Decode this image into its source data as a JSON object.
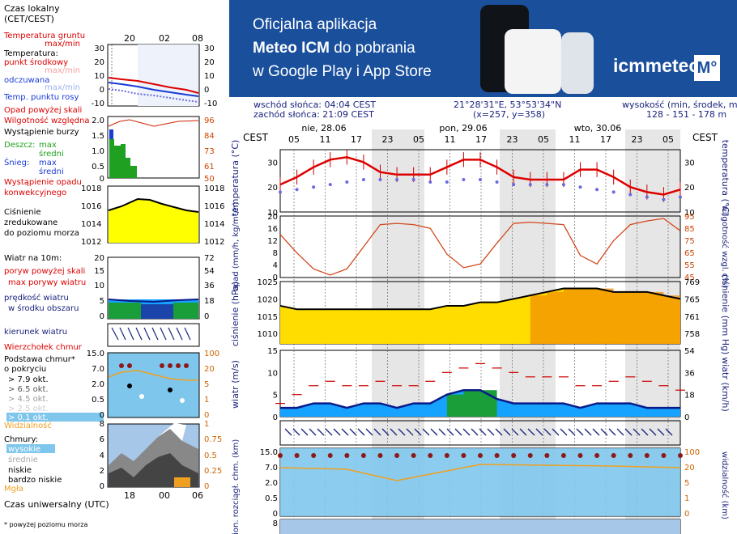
{
  "banner": {
    "line1": "Oficjalna aplikacja",
    "line2_bold": "Meteo ICM",
    "line2_rest": " do pobrania",
    "line3": "w Google Play i App Store",
    "logo": "icmmeteo",
    "logo_mark": "M°",
    "colors": {
      "background": "#1a4f9c",
      "text": "#ffffff"
    }
  },
  "info": {
    "sunrise": "wschód słońca: 04:04 CEST",
    "sunset": "zachód słońca: 21:09 CEST",
    "coords": "21°28'31\"E, 53°53'34\"N",
    "grid": "(x=257,  y=358)",
    "height_label": "wysokość (min, środek, max)",
    "height_values": "128 - 151 - 178 m"
  },
  "timeline": {
    "tz": "CEST",
    "days": [
      "nie, 28.06",
      "pon, 29.06",
      "wto, 30.06"
    ],
    "hours": [
      "05",
      "11",
      "17",
      "23",
      "05",
      "11",
      "17",
      "23",
      "05",
      "11",
      "17",
      "23",
      "05"
    ],
    "utc_label": "Czas uniwersalny (UTC)",
    "legend_top_hours": [
      "20",
      "02",
      "08"
    ],
    "legend_bottom_hours": [
      "18",
      "00",
      "06"
    ]
  },
  "legend": {
    "local_time": [
      "Czas lokalny",
      "(CET/CEST)"
    ],
    "temperature": {
      "ground": "Temperatura gruntu",
      "maxmin": "max/min",
      "title": "Temperatura:",
      "mid": "punkt środkowy",
      "maxmin2": "max/min",
      "feels": "odczuwana",
      "maxmin3": "max/min",
      "dew": "Temp. punktu rosy",
      "left_ticks": [
        "30",
        "20",
        "10",
        "0",
        "-10"
      ],
      "right_ticks": [
        "30",
        "20",
        "10",
        "0",
        "-10"
      ]
    },
    "precip": {
      "over_scale": "Opad powyżej skali",
      "humidity": "Wilgotność względna",
      "storm": "Wystąpienie burzy",
      "rain": "Deszcz:",
      "rain_max": "max",
      "rain_avg": "średni",
      "snow": "Śnieg:",
      "snow_max": "max",
      "snow_avg": "średni",
      "occurrence": [
        "Wystąpienie opadu",
        "konwekcyjnego"
      ],
      "left_ticks": [
        "2.0",
        "1.5",
        "1.0",
        "0.5",
        "0"
      ],
      "right_ticks": [
        "96",
        "84",
        "73",
        "61",
        "50"
      ]
    },
    "pressure": {
      "label": [
        "Ciśnienie",
        "zredukowane",
        "do poziomu morza"
      ],
      "ticks": [
        "1018",
        "1016",
        "1014",
        "1012"
      ]
    },
    "wind": {
      "title": "Wiatr na 10m:",
      "gust_over": "poryw powyżej skali",
      "gust_max": "max porywy wiatru",
      "speed": [
        "prędkość wiatru",
        "w środku obszaru"
      ],
      "left_ticks": [
        "20",
        "15",
        "10",
        "5",
        "0"
      ],
      "right_ticks": [
        "72",
        "54",
        "36",
        "18",
        "0"
      ]
    },
    "wind_dir": "kierunek wiatru",
    "cloud_base": {
      "top": "Wierzchołek chmur",
      "title": [
        "Podstawa chmur*",
        "o pokryciu"
      ],
      "okt": [
        "> 7.9 okt.",
        "> 6.5 okt.",
        "> 4.5 okt.",
        "> 2.5 okt.",
        "> 0.1 okt."
      ],
      "visibility": "Widzialność",
      "left_ticks": [
        "15.0",
        "7.0",
        "2.0",
        "0.5",
        "0"
      ],
      "right_ticks": [
        "100",
        "20",
        "5",
        "1",
        "0"
      ]
    },
    "clouds": {
      "title": "Chmury:",
      "high": "wysokie",
      "mid": "średnie",
      "low": "niskie",
      "very_low": "bardzo niskie",
      "fog": "Mgła",
      "left_ticks": [
        "8",
        "6",
        "4",
        "2",
        "0"
      ],
      "right_ticks": [
        "1",
        "0.75",
        "0.5",
        "0.25",
        "0"
      ]
    },
    "footnote": "* powyżej poziomu morza"
  },
  "axes": {
    "temperature": {
      "left": "temperatura (°C)",
      "right": "temperatura (°C)",
      "ticks": [
        "30",
        "20",
        "10"
      ]
    },
    "precip": {
      "left": "opad (mm/h, kg/m²/h)",
      "right": "wilgotność wzgl. (%)",
      "left_ticks": [
        "20",
        "16",
        "12",
        "8",
        "4",
        "0"
      ],
      "right_ticks": [
        "95",
        "85",
        "75",
        "65",
        "55",
        "45"
      ]
    },
    "pressure": {
      "left": "ciśnienie (hPa)",
      "right": "ciśnienie (mm Hg)",
      "left_ticks": [
        "1025",
        "1020",
        "1015",
        "1010"
      ],
      "right_ticks": [
        "769",
        "765",
        "761",
        "758"
      ]
    },
    "wind": {
      "left": "wiatr (m/s)",
      "right": "wiatr (km/h)",
      "left_ticks": [
        "15",
        "10",
        "5",
        "0"
      ],
      "right_ticks": [
        "54",
        "36",
        "18",
        "0"
      ]
    },
    "cloud": {
      "left": "pion. rozciągł. chm. (km)",
      "right": "widzialność (km)",
      "left_ticks": [
        "15.0",
        "7.0",
        "2.0",
        "0.5",
        "0"
      ],
      "right_ticks": [
        "100",
        "20",
        "5",
        "1",
        "0"
      ]
    },
    "clouds_bottom": {
      "left_ticks": [
        "8"
      ]
    }
  },
  "chart_data": {
    "type": "line",
    "x_label": "hour index (3h steps from 05 CEST, 28.06)",
    "series": [
      {
        "name": "temperatura",
        "unit": "°C",
        "values": [
          21,
          24,
          28,
          31,
          32,
          30,
          26,
          25,
          25,
          25,
          28,
          31,
          31,
          28,
          24,
          23,
          23,
          23,
          27,
          27,
          24,
          20,
          18,
          17,
          19
        ]
      },
      {
        "name": "temperatura punktu rosy",
        "unit": "°C",
        "values": [
          18,
          19,
          20,
          21,
          22,
          23,
          23,
          23,
          23,
          22,
          22,
          23,
          23,
          22,
          21,
          21,
          21,
          21,
          20,
          19,
          18,
          17,
          16,
          15,
          16
        ]
      },
      {
        "name": "opad",
        "unit": "mm/h",
        "values": [
          0,
          0,
          0,
          0,
          0,
          0,
          0,
          0,
          0,
          0,
          0,
          0,
          0,
          0,
          0,
          0,
          0,
          0,
          0,
          0,
          0,
          0,
          0,
          0,
          0
        ]
      },
      {
        "name": "wilgotność",
        "unit": "%",
        "values": [
          80,
          65,
          52,
          47,
          52,
          70,
          88,
          89,
          88,
          85,
          64,
          53,
          56,
          73,
          89,
          90,
          89,
          88,
          63,
          56,
          75,
          88,
          91,
          93,
          83
        ]
      },
      {
        "name": "ciśnienie",
        "unit": "hPa",
        "values": [
          1018,
          1017,
          1017,
          1017,
          1017,
          1017,
          1017,
          1017,
          1017,
          1017,
          1018,
          1018,
          1019,
          1019,
          1020,
          1021,
          1022,
          1023,
          1023,
          1023,
          1022,
          1022,
          1022,
          1021,
          1020
        ]
      },
      {
        "name": "wiatr",
        "unit": "m/s",
        "values": [
          2,
          2,
          3,
          3,
          2,
          3,
          3,
          2,
          3,
          3,
          5,
          6,
          6,
          4,
          3,
          3,
          3,
          3,
          2,
          3,
          3,
          3,
          2,
          2,
          2
        ]
      },
      {
        "name": "porywy",
        "unit": "m/s",
        "values": [
          3,
          5,
          7,
          8,
          7,
          7,
          8,
          7,
          7,
          8,
          10,
          11,
          12,
          11,
          10,
          9,
          9,
          9,
          7,
          7,
          8,
          9,
          8,
          7,
          6
        ]
      }
    ]
  }
}
